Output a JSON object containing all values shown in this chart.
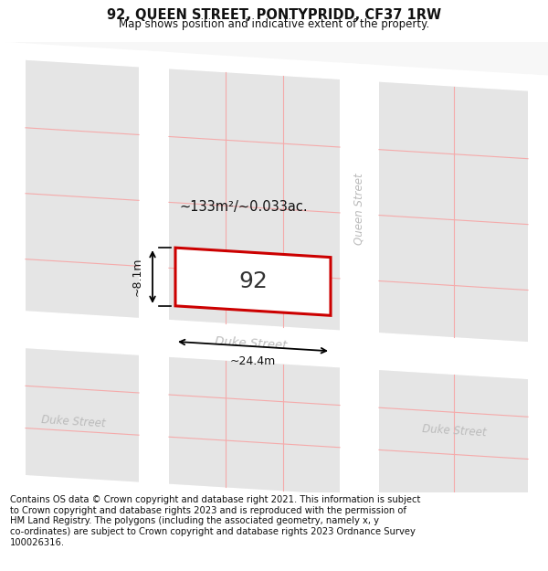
{
  "title": "92, QUEEN STREET, PONTYPRIDD, CF37 1RW",
  "subtitle": "Map shows position and indicative extent of the property.",
  "footer": "Contains OS data © Crown copyright and database right 2021. This information is subject\nto Crown copyright and database rights 2023 and is reproduced with the permission of\nHM Land Registry. The polygons (including the associated geometry, namely x, y\nco-ordinates) are subject to Crown copyright and database rights 2023 Ordnance Survey\n100026316.",
  "bg_color": "#ffffff",
  "map_bg": "#f7f7f7",
  "street_color": "#ffffff",
  "block_color": "#e5e5e5",
  "grid_line_color": "#f5aaaa",
  "road_label_color": "#bbbbbb",
  "highlight_color": "#cc0000",
  "label_92": "92",
  "area_label": "~133m²/~0.033ac.",
  "width_label": "~24.4m",
  "height_label": "~8.1m",
  "title_fontsize": 10.5,
  "subtitle_fontsize": 8.5,
  "footer_fontsize": 7.2
}
